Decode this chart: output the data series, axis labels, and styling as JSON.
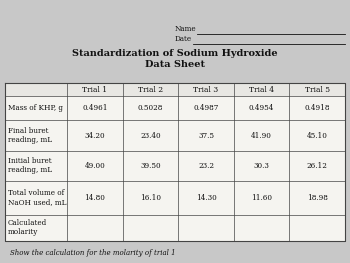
{
  "title_line1": "Standardization of Sodium Hydroxide",
  "title_line2": "Data Sheet",
  "name_label": "Name",
  "date_label": "Date",
  "col_headers": [
    "Trial 1",
    "Trial 2",
    "Trial 3",
    "Trial 4",
    "Trial 5"
  ],
  "row_labels": [
    "Mass of KHP, g",
    "Final buret\nreading, mL",
    "Initial buret\nreading, mL",
    "Total volume of\nNaOH used, mL",
    "Calculated\nmolarity"
  ],
  "table_data": [
    [
      "0.4961",
      "0.5028",
      "0.4987",
      "0.4954",
      "0.4918"
    ],
    [
      "34.20",
      "23.40",
      "37.5",
      "41.90",
      "45.10"
    ],
    [
      "49.00",
      "39.50",
      "23.2",
      "30.3",
      "26.12"
    ],
    [
      "14.80",
      "16.10",
      "14.30",
      "11.60",
      "18.98"
    ],
    [
      "",
      "",
      "",
      "",
      ""
    ]
  ],
  "footer_text": "Show the calculation for the molarity of trial 1",
  "bg_color": "#c8c8c8",
  "table_fill": "#f5f4f0",
  "header_fill": "#e8e7e3",
  "border_color": "#444444",
  "text_color": "#111111",
  "title_fontsize": 7.0,
  "cell_fontsize": 5.2,
  "header_fontsize": 5.5,
  "name_date_fontsize": 5.2,
  "footer_fontsize": 5.0
}
